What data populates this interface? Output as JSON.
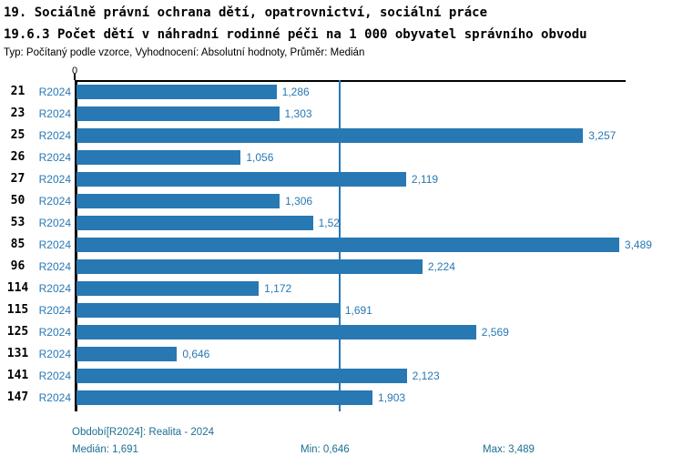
{
  "header": {
    "title_line1": "19. Sociálně právní ochrana dětí, opatrovnictví, sociální práce",
    "title_line2": "19.6.3 Počet dětí v náhradní rodinné péči na 1 000 obyvatel správního obvodu",
    "meta": "Typ: Počítaný podle vzorce, Vyhodnocení: Absolutní hodnoty, Průměr: Medián"
  },
  "chart_data": {
    "type": "bar",
    "orientation": "horizontal",
    "title": "19.6.3 Počet dětí v náhradní rodinné péči na 1 000 obyvatel správního obvodu",
    "series_label": "R2024",
    "categories": [
      "21",
      "23",
      "25",
      "26",
      "27",
      "50",
      "53",
      "85",
      "96",
      "114",
      "115",
      "125",
      "131",
      "141",
      "147"
    ],
    "values": [
      1.286,
      1.303,
      3.257,
      1.056,
      2.119,
      1.306,
      1.52,
      3.489,
      2.224,
      1.172,
      1.691,
      2.569,
      0.646,
      2.123,
      1.903
    ],
    "value_labels": [
      "1,286",
      "1,303",
      "3,257",
      "1,056",
      "2,119",
      "1,306",
      "1,52",
      "3,489",
      "2,224",
      "1,172",
      "1,691",
      "2,569",
      "0,646",
      "2,123",
      "1,903"
    ],
    "x_axis": {
      "tick_labels": [
        "0"
      ],
      "range": [
        0,
        3.54
      ]
    },
    "median_line_value": 1.691,
    "median": 1.691,
    "min": 0.646,
    "max": 3.489,
    "bar_color": "#2878b4",
    "median_line_color": "#2878b4",
    "grid": false,
    "legend_position": "none"
  },
  "footer": {
    "period": "Období[R2024]: Realita - 2024",
    "median": "Medián: 1,691",
    "min": "Min: 0,646",
    "max": "Max: 3,489"
  }
}
